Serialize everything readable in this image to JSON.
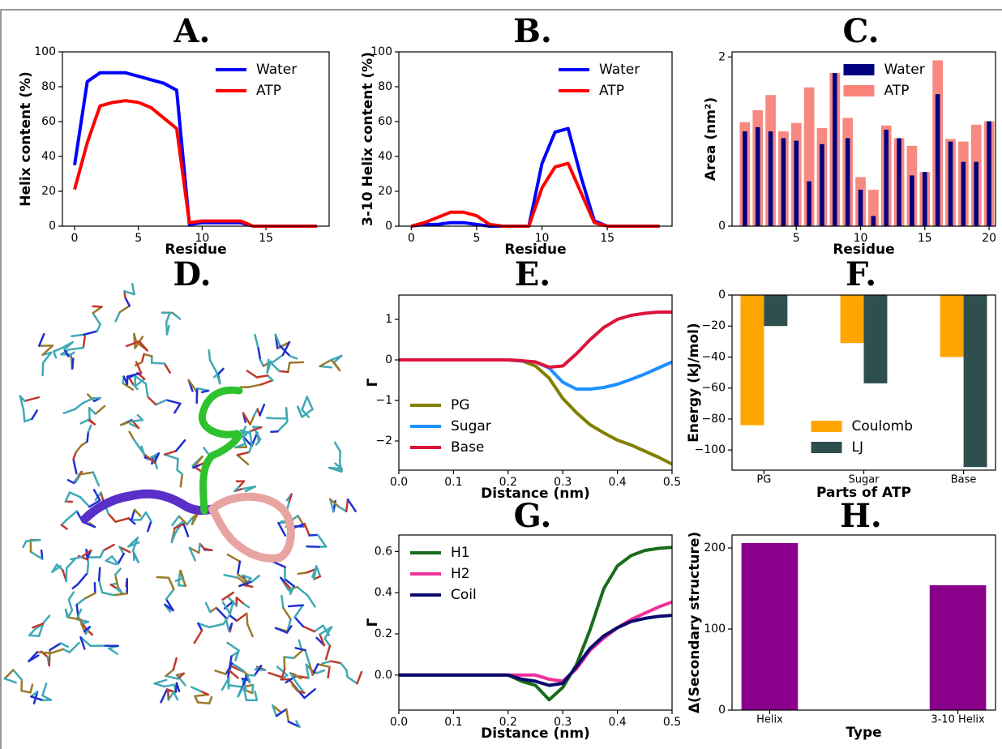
{
  "chart_data": [
    {
      "type": "line",
      "title": "A.",
      "xlabel": "Residue",
      "ylabel": "Helix content (%)",
      "x": [
        0,
        1,
        2,
        3,
        4,
        5,
        6,
        7,
        8,
        9,
        10,
        11,
        12,
        13,
        14,
        15,
        16,
        17,
        18,
        19
      ],
      "series": [
        {
          "name": "Water",
          "color": "#0000ff",
          "values": [
            35,
            83,
            88,
            88,
            88,
            86,
            84,
            82,
            78,
            1,
            2,
            2,
            2,
            2,
            0,
            0,
            0,
            0,
            0,
            0
          ]
        },
        {
          "name": "ATP",
          "color": "#ff0000",
          "values": [
            21,
            48,
            69,
            71,
            72,
            71,
            68,
            62,
            56,
            2,
            3,
            3,
            3,
            3,
            0,
            0,
            0,
            0,
            0,
            0
          ]
        }
      ],
      "xlim": [
        -0.95,
        19.95
      ],
      "ylim": [
        0,
        100
      ],
      "xticks": [
        0,
        5,
        10,
        15
      ],
      "yticks": [
        0,
        20,
        40,
        60,
        80,
        100
      ],
      "legend": "upper right"
    },
    {
      "type": "line",
      "title": "B.",
      "xlabel": "Residue",
      "ylabel": "3-10 Helix content (%)",
      "x": [
        0,
        1,
        2,
        3,
        4,
        5,
        6,
        7,
        8,
        9,
        10,
        11,
        12,
        13,
        14,
        15,
        16,
        17,
        18,
        19
      ],
      "series": [
        {
          "name": "Water",
          "color": "#0000ff",
          "values": [
            0,
            1,
            1,
            2,
            2,
            1,
            0,
            0,
            0,
            0,
            36,
            54,
            56,
            28,
            3,
            0,
            0,
            0,
            0,
            0
          ]
        },
        {
          "name": "ATP",
          "color": "#ff0000",
          "values": [
            0,
            2,
            5,
            8,
            8,
            6,
            1,
            0,
            0,
            0,
            22,
            34,
            36,
            19,
            2,
            0,
            0,
            0,
            0,
            0
          ]
        }
      ],
      "xlim": [
        -0.95,
        19.95
      ],
      "ylim": [
        0,
        100
      ],
      "xticks": [
        0,
        5,
        10,
        15
      ],
      "yticks": [
        0,
        20,
        40,
        60,
        80,
        100
      ],
      "legend": "upper right"
    },
    {
      "type": "bar",
      "title": "C.",
      "xlabel": "Residue",
      "ylabel": "Area (nm²)",
      "x": [
        1,
        2,
        3,
        4,
        5,
        6,
        7,
        8,
        9,
        10,
        11,
        12,
        13,
        14,
        15,
        16,
        17,
        18,
        19,
        20
      ],
      "series": [
        {
          "name": "Water",
          "color": "#000080",
          "values": [
            1.12,
            1.17,
            1.12,
            1.04,
            1.01,
            0.53,
            0.97,
            1.81,
            1.04,
            0.43,
            0.12,
            1.14,
            1.04,
            0.6,
            0.64,
            1.56,
            1.0,
            0.76,
            0.76,
            1.24
          ]
        },
        {
          "name": "ATP",
          "color": "#f88379",
          "values": [
            1.23,
            1.37,
            1.55,
            1.12,
            1.22,
            1.64,
            1.16,
            1.81,
            1.28,
            0.58,
            0.43,
            1.19,
            1.04,
            0.95,
            0.64,
            1.96,
            1.03,
            1.0,
            1.2,
            1.24
          ]
        }
      ],
      "xlim": [
        0,
        20.5
      ],
      "ylim": [
        0,
        2.06
      ],
      "xticks": [
        5,
        10,
        15,
        20
      ],
      "yticks": [
        0,
        2
      ],
      "legend": "upper center"
    },
    {
      "type": "image",
      "title": "D."
    },
    {
      "type": "line",
      "title": "E.",
      "xlabel": "Distance (nm)",
      "ylabel": "Γ",
      "x": [
        0,
        0.025,
        0.05,
        0.075,
        0.1,
        0.125,
        0.15,
        0.175,
        0.2,
        0.225,
        0.25,
        0.275,
        0.3,
        0.325,
        0.35,
        0.375,
        0.4,
        0.425,
        0.45,
        0.475,
        0.5
      ],
      "series": [
        {
          "name": "PG",
          "color": "#808000",
          "values": [
            0,
            0,
            0,
            0,
            0,
            0,
            0,
            0,
            0,
            -0.02,
            -0.15,
            -0.45,
            -0.95,
            -1.3,
            -1.6,
            -1.8,
            -1.98,
            -2.1,
            -2.25,
            -2.4,
            -2.57
          ]
        },
        {
          "name": "Sugar",
          "color": "#1e90ff",
          "values": [
            0,
            0,
            0,
            0,
            0,
            0,
            0,
            0,
            0,
            -0.03,
            -0.05,
            -0.2,
            -0.55,
            -0.72,
            -0.72,
            -0.68,
            -0.6,
            -0.48,
            -0.35,
            -0.2,
            -0.05
          ]
        },
        {
          "name": "Base",
          "color": "#dc143c",
          "values": [
            0,
            0,
            0,
            0,
            0,
            0,
            0,
            0,
            0,
            -0.02,
            -0.05,
            -0.18,
            -0.15,
            0.15,
            0.5,
            0.8,
            1.0,
            1.1,
            1.15,
            1.18,
            1.18
          ]
        }
      ],
      "xlim": [
        0,
        0.5
      ],
      "ylim": [
        -2.72,
        1.6
      ],
      "xticks": [
        {
          "value": 0,
          "label": "0.0"
        },
        0.1,
        0.2,
        0.3,
        0.4,
        0.5
      ],
      "yticks": [
        {
          "value": -2,
          "label": "−2"
        },
        {
          "value": -1,
          "label": "−1"
        },
        0,
        1
      ],
      "legend": "lower left"
    },
    {
      "type": "bar",
      "title": "F.",
      "xlabel": "Parts of ATP",
      "ylabel": "Energy (kJ/mol)",
      "categories": [
        "PG",
        "Sugar",
        "Base"
      ],
      "series": [
        {
          "name": "Coulomb",
          "color": "#ffa500",
          "values": [
            -84,
            -31,
            -40
          ]
        },
        {
          "name": "LJ",
          "color": "#2f4f4f",
          "values": [
            -20,
            -57,
            -111
          ]
        }
      ],
      "ylim": [
        -113,
        0
      ],
      "yticks": [
        {
          "value": -100,
          "label": "−100"
        },
        {
          "value": -80,
          "label": "−80"
        },
        {
          "value": -60,
          "label": "−60"
        },
        {
          "value": -40,
          "label": "−40"
        },
        {
          "value": -20,
          "label": "−20"
        },
        0
      ],
      "legend": "lower center"
    },
    {
      "type": "line",
      "title": "G.",
      "xlabel": "Distance (nm)",
      "ylabel": "Γ",
      "x": [
        0,
        0.025,
        0.05,
        0.075,
        0.1,
        0.125,
        0.15,
        0.175,
        0.2,
        0.225,
        0.25,
        0.275,
        0.3,
        0.325,
        0.35,
        0.375,
        0.4,
        0.425,
        0.45,
        0.475,
        0.5
      ],
      "series": [
        {
          "name": "H1",
          "color": "#1a6b1a",
          "values": [
            0,
            0,
            0,
            0,
            0,
            0,
            0,
            0,
            0,
            -0.03,
            -0.05,
            -0.12,
            -0.06,
            0.05,
            0.22,
            0.42,
            0.53,
            0.58,
            0.605,
            0.615,
            0.62
          ]
        },
        {
          "name": "H2",
          "color": "#f0309a",
          "values": [
            0,
            0,
            0,
            0,
            0,
            0,
            0,
            0,
            0,
            0,
            0,
            -0.02,
            -0.03,
            0.03,
            0.12,
            0.18,
            0.23,
            0.27,
            0.3,
            0.33,
            0.355
          ]
        },
        {
          "name": "Coil",
          "color": "#0a0a6e",
          "values": [
            0,
            0,
            0,
            0,
            0,
            0,
            0,
            0,
            0,
            -0.02,
            -0.03,
            -0.05,
            -0.04,
            0.04,
            0.13,
            0.19,
            0.23,
            0.26,
            0.275,
            0.285,
            0.29
          ]
        }
      ],
      "xlim": [
        0,
        0.5
      ],
      "ylim": [
        -0.17,
        0.68
      ],
      "xticks": [
        {
          "value": 0,
          "label": "0.0"
        },
        0.1,
        0.2,
        0.3,
        0.4,
        0.5
      ],
      "yticks": [
        {
          "value": 0,
          "label": "0.0"
        },
        0.2,
        0.4,
        0.6
      ],
      "legend": "upper left"
    },
    {
      "type": "bar",
      "title": "H.",
      "xlabel": "Type",
      "ylabel": "Δ(Secondary structure)",
      "categories": [
        "Helix",
        "3-10 Helix"
      ],
      "values": [
        206,
        154
      ],
      "color": "#8b008b",
      "ylim": [
        0,
        216
      ],
      "yticks": [
        0,
        100,
        200
      ]
    }
  ]
}
